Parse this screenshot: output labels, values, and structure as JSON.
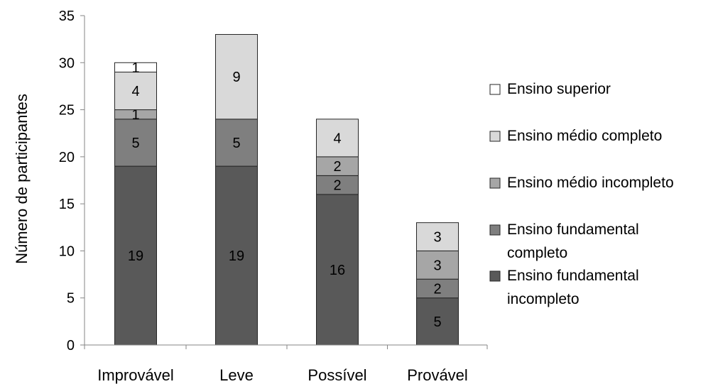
{
  "chart_data": {
    "type": "bar",
    "stacked": true,
    "categories": [
      "Improvável",
      "Leve",
      "Possível",
      "Provável"
    ],
    "ylabel": "Número de participantes",
    "xlabel": "",
    "ylim": [
      0,
      35
    ],
    "yticks": [
      0,
      5,
      10,
      15,
      20,
      25,
      30,
      35
    ],
    "grid": false,
    "legend_position": "right",
    "series": [
      {
        "name": "Ensino fundamental incompleto",
        "legend_lines": [
          "Ensino fundamental",
          "incompleto"
        ],
        "color": "#595959",
        "values": [
          19,
          19,
          16,
          5
        ]
      },
      {
        "name": "Ensino fundamental completo",
        "legend_lines": [
          "Ensino fundamental",
          "completo"
        ],
        "color": "#7f7f7f",
        "values": [
          5,
          5,
          2,
          2
        ]
      },
      {
        "name": "Ensino médio incompleto",
        "legend_lines": [
          "Ensino médio incompleto"
        ],
        "color": "#a6a6a6",
        "values": [
          1,
          0,
          2,
          3
        ]
      },
      {
        "name": "Ensino médio completo",
        "legend_lines": [
          "Ensino médio completo"
        ],
        "color": "#d9d9d9",
        "values": [
          4,
          9,
          4,
          3
        ]
      },
      {
        "name": "Ensino superior",
        "legend_lines": [
          "Ensino superior"
        ],
        "color": "#ffffff",
        "values": [
          1,
          0,
          0,
          0
        ]
      }
    ]
  }
}
